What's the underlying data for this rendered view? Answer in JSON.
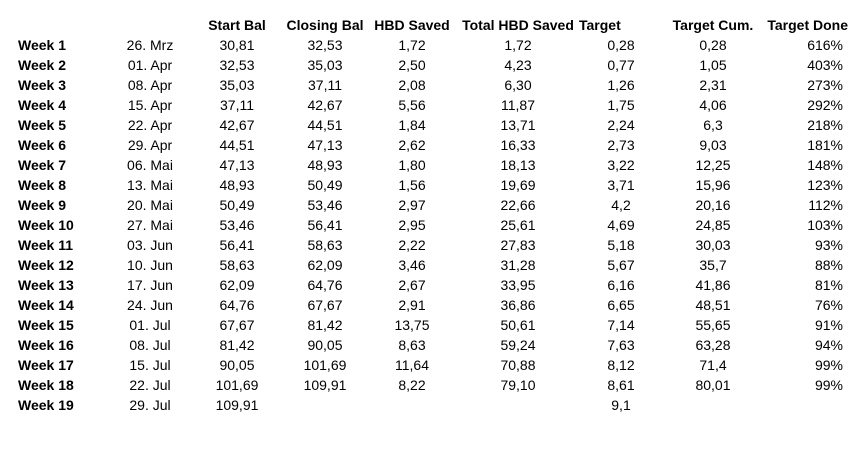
{
  "colors": {
    "text": "#000000",
    "background": "#ffffff"
  },
  "chart_data": {
    "type": "table",
    "title": "",
    "number_format": "german-decimal-comma",
    "columns": [
      {
        "key": "week",
        "label": ""
      },
      {
        "key": "date",
        "label": ""
      },
      {
        "key": "start_bal",
        "label": "Start Bal"
      },
      {
        "key": "closing_bal",
        "label": "Closing Bal"
      },
      {
        "key": "hbd_saved",
        "label": "HBD Saved"
      },
      {
        "key": "total_hbd_saved",
        "label": "Total HBD Saved"
      },
      {
        "key": "target",
        "label": "Target"
      },
      {
        "key": "target_cum",
        "label": "Target Cum."
      },
      {
        "key": "target_done",
        "label": "Target Done"
      }
    ],
    "rows": [
      {
        "week": "Week 1",
        "date": "26. Mrz",
        "start_bal": "30,81",
        "closing_bal": "32,53",
        "hbd_saved": "1,72",
        "total_hbd_saved": "1,72",
        "target": "0,28",
        "target_cum": "0,28",
        "target_done": "616%"
      },
      {
        "week": "Week 2",
        "date": "01. Apr",
        "start_bal": "32,53",
        "closing_bal": "35,03",
        "hbd_saved": "2,50",
        "total_hbd_saved": "4,23",
        "target": "0,77",
        "target_cum": "1,05",
        "target_done": "403%"
      },
      {
        "week": "Week 3",
        "date": "08. Apr",
        "start_bal": "35,03",
        "closing_bal": "37,11",
        "hbd_saved": "2,08",
        "total_hbd_saved": "6,30",
        "target": "1,26",
        "target_cum": "2,31",
        "target_done": "273%"
      },
      {
        "week": "Week 4",
        "date": "15. Apr",
        "start_bal": "37,11",
        "closing_bal": "42,67",
        "hbd_saved": "5,56",
        "total_hbd_saved": "11,87",
        "target": "1,75",
        "target_cum": "4,06",
        "target_done": "292%"
      },
      {
        "week": "Week 5",
        "date": "22. Apr",
        "start_bal": "42,67",
        "closing_bal": "44,51",
        "hbd_saved": "1,84",
        "total_hbd_saved": "13,71",
        "target": "2,24",
        "target_cum": "6,3",
        "target_done": "218%"
      },
      {
        "week": "Week 6",
        "date": "29. Apr",
        "start_bal": "44,51",
        "closing_bal": "47,13",
        "hbd_saved": "2,62",
        "total_hbd_saved": "16,33",
        "target": "2,73",
        "target_cum": "9,03",
        "target_done": "181%"
      },
      {
        "week": "Week 7",
        "date": "06. Mai",
        "start_bal": "47,13",
        "closing_bal": "48,93",
        "hbd_saved": "1,80",
        "total_hbd_saved": "18,13",
        "target": "3,22",
        "target_cum": "12,25",
        "target_done": "148%"
      },
      {
        "week": "Week 8",
        "date": "13. Mai",
        "start_bal": "48,93",
        "closing_bal": "50,49",
        "hbd_saved": "1,56",
        "total_hbd_saved": "19,69",
        "target": "3,71",
        "target_cum": "15,96",
        "target_done": "123%"
      },
      {
        "week": "Week 9",
        "date": "20. Mai",
        "start_bal": "50,49",
        "closing_bal": "53,46",
        "hbd_saved": "2,97",
        "total_hbd_saved": "22,66",
        "target": "4,2",
        "target_cum": "20,16",
        "target_done": "112%"
      },
      {
        "week": "Week 10",
        "date": "27. Mai",
        "start_bal": "53,46",
        "closing_bal": "56,41",
        "hbd_saved": "2,95",
        "total_hbd_saved": "25,61",
        "target": "4,69",
        "target_cum": "24,85",
        "target_done": "103%"
      },
      {
        "week": "Week 11",
        "date": "03. Jun",
        "start_bal": "56,41",
        "closing_bal": "58,63",
        "hbd_saved": "2,22",
        "total_hbd_saved": "27,83",
        "target": "5,18",
        "target_cum": "30,03",
        "target_done": "93%"
      },
      {
        "week": "Week 12",
        "date": "10. Jun",
        "start_bal": "58,63",
        "closing_bal": "62,09",
        "hbd_saved": "3,46",
        "total_hbd_saved": "31,28",
        "target": "5,67",
        "target_cum": "35,7",
        "target_done": "88%"
      },
      {
        "week": "Week 13",
        "date": "17. Jun",
        "start_bal": "62,09",
        "closing_bal": "64,76",
        "hbd_saved": "2,67",
        "total_hbd_saved": "33,95",
        "target": "6,16",
        "target_cum": "41,86",
        "target_done": "81%"
      },
      {
        "week": "Week 14",
        "date": "24. Jun",
        "start_bal": "64,76",
        "closing_bal": "67,67",
        "hbd_saved": "2,91",
        "total_hbd_saved": "36,86",
        "target": "6,65",
        "target_cum": "48,51",
        "target_done": "76%"
      },
      {
        "week": "Week 15",
        "date": "01. Jul",
        "start_bal": "67,67",
        "closing_bal": "81,42",
        "hbd_saved": "13,75",
        "total_hbd_saved": "50,61",
        "target": "7,14",
        "target_cum": "55,65",
        "target_done": "91%"
      },
      {
        "week": "Week 16",
        "date": "08. Jul",
        "start_bal": "81,42",
        "closing_bal": "90,05",
        "hbd_saved": "8,63",
        "total_hbd_saved": "59,24",
        "target": "7,63",
        "target_cum": "63,28",
        "target_done": "94%"
      },
      {
        "week": "Week 17",
        "date": "15. Jul",
        "start_bal": "90,05",
        "closing_bal": "101,69",
        "hbd_saved": "11,64",
        "total_hbd_saved": "70,88",
        "target": "8,12",
        "target_cum": "71,4",
        "target_done": "99%"
      },
      {
        "week": "Week 18",
        "date": "22. Jul",
        "start_bal": "101,69",
        "closing_bal": "109,91",
        "hbd_saved": "8,22",
        "total_hbd_saved": "79,10",
        "target": "8,61",
        "target_cum": "80,01",
        "target_done": "99%"
      },
      {
        "week": "Week 19",
        "date": "29. Jul",
        "start_bal": "109,91",
        "closing_bal": "",
        "hbd_saved": "",
        "total_hbd_saved": "",
        "target": "9,1",
        "target_cum": "",
        "target_done": ""
      }
    ]
  }
}
